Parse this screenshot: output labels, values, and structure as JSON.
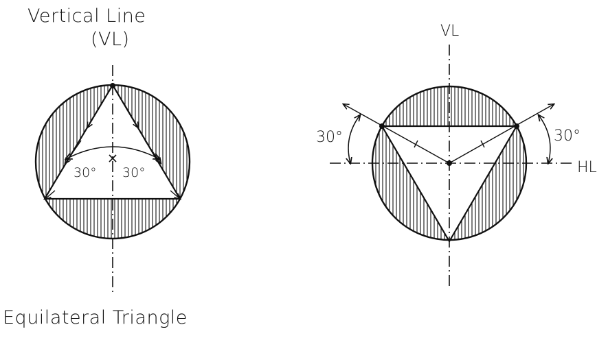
{
  "left_figure": {
    "title_line1": "Vertical Line",
    "title_line2": "(VL)",
    "angle_left": "30°",
    "angle_right": "30°",
    "caption": "Equilateral Triangle"
  },
  "right_figure": {
    "vertical_label": "VL",
    "horizontal_label": "HL",
    "angle_left": "30°",
    "angle_right": "30°"
  },
  "colors": {
    "ink": "#111111",
    "background": "#ffffff"
  }
}
